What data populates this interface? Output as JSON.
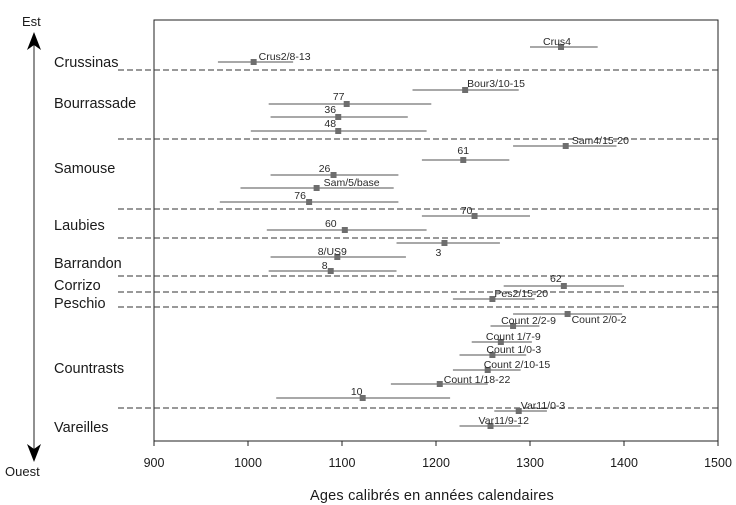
{
  "chart_data": {
    "type": "range",
    "xlabel": "Ages calibrés en années calendaires",
    "xlim": [
      900,
      1500
    ],
    "xticks": [
      900,
      1000,
      1100,
      1200,
      1300,
      1400,
      1500
    ],
    "direction_top": "Est",
    "direction_bottom": "Ouest",
    "sites": [
      {
        "name": "Crussinas",
        "samples": [
          {
            "label": "Crus4",
            "center": 1333,
            "low": 1300,
            "high": 1372
          },
          {
            "label": "Crus2/8-13",
            "center": 1006,
            "low": 968,
            "high": 1048
          }
        ]
      },
      {
        "name": "Bourrassade",
        "samples": [
          {
            "label": "Bour3/10-15",
            "center": 1231,
            "low": 1175,
            "high": 1288
          },
          {
            "label": "77",
            "center": 1105,
            "low": 1022,
            "high": 1195
          },
          {
            "label": "36",
            "center": 1096,
            "low": 1024,
            "high": 1170
          },
          {
            "label": "48",
            "center": 1096,
            "low": 1003,
            "high": 1190
          }
        ]
      },
      {
        "name": "Samouse",
        "samples": [
          {
            "label": "Sam4/15-20",
            "center": 1338,
            "low": 1282,
            "high": 1392
          },
          {
            "label": "61",
            "center": 1229,
            "low": 1185,
            "high": 1278
          },
          {
            "label": "26",
            "center": 1091,
            "low": 1024,
            "high": 1160
          },
          {
            "label": "Sam/5/base",
            "center": 1073,
            "low": 992,
            "high": 1155
          },
          {
            "label": "76",
            "center": 1065,
            "low": 970,
            "high": 1160
          }
        ]
      },
      {
        "name": "Laubies",
        "samples": [
          {
            "label": "70",
            "center": 1241,
            "low": 1185,
            "high": 1300
          },
          {
            "label": "60",
            "center": 1103,
            "low": 1020,
            "high": 1190
          }
        ]
      },
      {
        "name": "Barrandon",
        "samples": [
          {
            "label": "3",
            "center": 1209,
            "low": 1158,
            "high": 1268
          },
          {
            "label": "8/US9",
            "center": 1095,
            "low": 1024,
            "high": 1168
          },
          {
            "label": "8",
            "center": 1088,
            "low": 1022,
            "high": 1158
          }
        ]
      },
      {
        "name": "Corrizo",
        "samples": [
          {
            "label": "62",
            "center": 1336,
            "low": 1272,
            "high": 1400
          }
        ]
      },
      {
        "name": "Peschio",
        "samples": [
          {
            "label": "Pes2/15-20",
            "center": 1260,
            "low": 1218,
            "high": 1305
          }
        ]
      },
      {
        "name": "Countrasts",
        "samples": [
          {
            "label": "Count 2/0-2",
            "center": 1340,
            "low": 1282,
            "high": 1398
          },
          {
            "label": "Count 2/2-9",
            "center": 1282,
            "low": 1258,
            "high": 1310
          },
          {
            "label": "Count 1/7-9",
            "center": 1269,
            "low": 1238,
            "high": 1302
          },
          {
            "label": "Count 1/0-3",
            "center": 1260,
            "low": 1225,
            "high": 1296
          },
          {
            "label": "Count 2/10-15",
            "center": 1255,
            "low": 1218,
            "high": 1290
          },
          {
            "label": "Count 1/18-22",
            "center": 1204,
            "low": 1152,
            "high": 1255
          },
          {
            "label": "10",
            "center": 1122,
            "low": 1030,
            "high": 1215
          }
        ]
      },
      {
        "name": "Vareilles",
        "samples": [
          {
            "label": "Var11/0-3",
            "center": 1288,
            "low": 1262,
            "high": 1318
          },
          {
            "label": "Var11/9-12",
            "center": 1258,
            "low": 1225,
            "high": 1290
          }
        ]
      }
    ]
  }
}
